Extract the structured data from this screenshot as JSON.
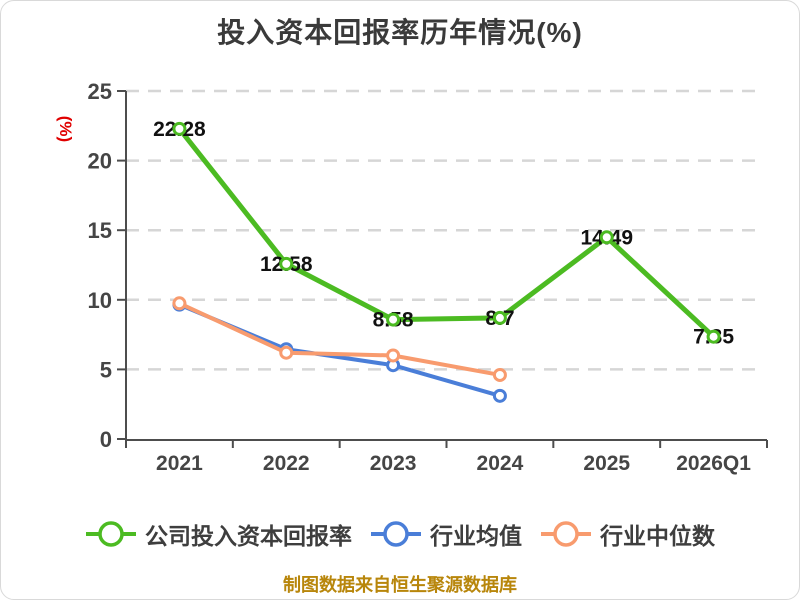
{
  "chart_data": {
    "type": "line",
    "title": "投入资本回报率历年情况(%)",
    "ylabel": "(%)",
    "source_note": "制图数据来自恒生聚源数据库",
    "categories": [
      "2021",
      "2022",
      "2023",
      "2024",
      "2025",
      "2026Q1"
    ],
    "ylim": [
      0,
      25
    ],
    "yticks": [
      0,
      5,
      10,
      15,
      20,
      25
    ],
    "grid": "horizontal-dashed",
    "legend_position": "bottom",
    "series": [
      {
        "name": "公司投入资本回报率",
        "color": "#4cbb22",
        "line_width": 5,
        "values": [
          22.28,
          12.58,
          8.58,
          8.7,
          14.49,
          7.35
        ],
        "value_labels": [
          "22.28",
          "12.58",
          "8.58",
          "8.7",
          "14.49",
          "7.35"
        ]
      },
      {
        "name": "行业均值",
        "color": "#4a7ed8",
        "line_width": 4,
        "values": [
          9.65,
          6.45,
          5.3,
          3.1,
          null,
          null
        ],
        "value_labels": []
      },
      {
        "name": "行业中位数",
        "color": "#f89b6e",
        "line_width": 4,
        "values": [
          9.75,
          6.2,
          6.0,
          4.6,
          null,
          null
        ],
        "value_labels": []
      }
    ],
    "colors": {
      "title": "#3a3a3a",
      "axis": "#4d4d4d",
      "tick_label": "#454545",
      "grid": "#d6d6d6",
      "value_label": "#111111",
      "ylabel": "#e00000",
      "source": "#b8860b",
      "legend_label": "#3e3e3e",
      "marker_fill": "#ffffff"
    }
  }
}
